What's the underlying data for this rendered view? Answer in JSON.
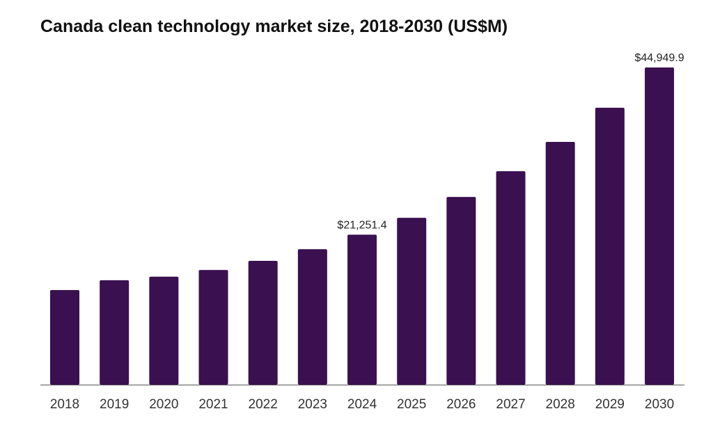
{
  "chart_data": {
    "type": "bar",
    "title": "Canada clean technology market size, 2018-2030 (US$M)",
    "xlabel": "",
    "ylabel": "",
    "categories": [
      "2018",
      "2019",
      "2020",
      "2021",
      "2022",
      "2023",
      "2024",
      "2025",
      "2026",
      "2027",
      "2028",
      "2029",
      "2030"
    ],
    "values": [
      13400,
      14800,
      15300,
      16250,
      17550,
      19200,
      21251.4,
      23650,
      26600,
      30250,
      34400,
      39250,
      44949.9
    ],
    "data_labels": [
      {
        "category": "2024",
        "text": "$21,251.4"
      },
      {
        "category": "2030",
        "text": "$44,949.9"
      }
    ],
    "ylim": [
      0,
      44949.9
    ],
    "grid": false,
    "legend": "none",
    "bar_color": "#3a1050"
  }
}
